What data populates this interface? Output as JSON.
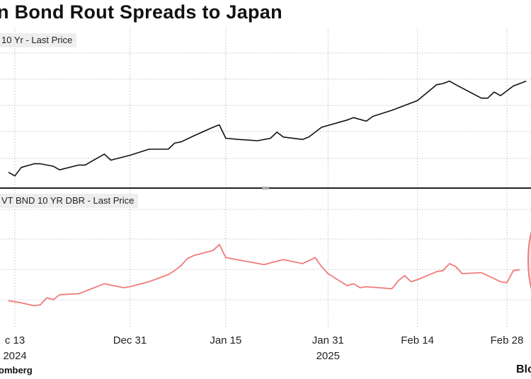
{
  "title": "n Bond Rout Spreads to Japan",
  "source": "omberg",
  "logo": "Blo",
  "chart_data": {
    "type": "line",
    "x_tick_labels": [
      {
        "date": "2024-12-13",
        "label": "c 13",
        "year": "2024"
      },
      {
        "date": "2024-12-31",
        "label": "Dec 31"
      },
      {
        "date": "2025-01-15",
        "label": "Jan 15"
      },
      {
        "date": "2025-01-31",
        "label": "Jan 31",
        "year": "2025"
      },
      {
        "date": "2025-02-14",
        "label": "Feb 14"
      },
      {
        "date": "2025-02-28",
        "label": "Feb 28"
      }
    ],
    "grid": true,
    "panels": [
      {
        "label": "10 Yr - Last Price",
        "color": "#111111",
        "ylim": [
          0,
          10
        ],
        "series": [
          {
            "x": "2024-12-12",
            "y": 0.6
          },
          {
            "x": "2024-12-13",
            "y": 0.3
          },
          {
            "x": "2024-12-14",
            "y": 1.0
          },
          {
            "x": "2024-12-16",
            "y": 1.3
          },
          {
            "x": "2024-12-17",
            "y": 1.3
          },
          {
            "x": "2024-12-18",
            "y": 1.2
          },
          {
            "x": "2024-12-19",
            "y": 1.1
          },
          {
            "x": "2024-12-20",
            "y": 0.8
          },
          {
            "x": "2024-12-23",
            "y": 1.2
          },
          {
            "x": "2024-12-24",
            "y": 1.2
          },
          {
            "x": "2024-12-25",
            "y": 1.5
          },
          {
            "x": "2024-12-27",
            "y": 2.1
          },
          {
            "x": "2024-12-28",
            "y": 1.6
          },
          {
            "x": "2024-12-31",
            "y": 2.0
          },
          {
            "x": "2025-01-03",
            "y": 2.5
          },
          {
            "x": "2025-01-06",
            "y": 2.5
          },
          {
            "x": "2025-01-07",
            "y": 3.0
          },
          {
            "x": "2025-01-08",
            "y": 3.1
          },
          {
            "x": "2025-01-10",
            "y": 3.6
          },
          {
            "x": "2025-01-13",
            "y": 4.3
          },
          {
            "x": "2025-01-14",
            "y": 4.5
          },
          {
            "x": "2025-01-15",
            "y": 3.4
          },
          {
            "x": "2025-01-17",
            "y": 3.3
          },
          {
            "x": "2025-01-20",
            "y": 3.2
          },
          {
            "x": "2025-01-22",
            "y": 3.4
          },
          {
            "x": "2025-01-23",
            "y": 3.9
          },
          {
            "x": "2025-01-24",
            "y": 3.5
          },
          {
            "x": "2025-01-27",
            "y": 3.3
          },
          {
            "x": "2025-01-28",
            "y": 3.5
          },
          {
            "x": "2025-01-30",
            "y": 4.3
          },
          {
            "x": "2025-02-03",
            "y": 4.9
          },
          {
            "x": "2025-02-04",
            "y": 5.1
          },
          {
            "x": "2025-02-06",
            "y": 4.8
          },
          {
            "x": "2025-02-07",
            "y": 5.2
          },
          {
            "x": "2025-02-10",
            "y": 5.7
          },
          {
            "x": "2025-02-12",
            "y": 6.1
          },
          {
            "x": "2025-02-14",
            "y": 6.5
          },
          {
            "x": "2025-02-17",
            "y": 7.8
          },
          {
            "x": "2025-02-18",
            "y": 7.9
          },
          {
            "x": "2025-02-19",
            "y": 8.1
          },
          {
            "x": "2025-02-20",
            "y": 7.8
          },
          {
            "x": "2025-02-24",
            "y": 6.7
          },
          {
            "x": "2025-02-25",
            "y": 6.7
          },
          {
            "x": "2025-02-26",
            "y": 7.2
          },
          {
            "x": "2025-02-27",
            "y": 6.9
          },
          {
            "x": "2025-03-01",
            "y": 7.7
          },
          {
            "x": "2025-03-03",
            "y": 8.1
          }
        ]
      },
      {
        "label": "VT BND 10 YR DBR - Last Price",
        "color": "#f07c7c",
        "ylim": [
          0,
          10
        ],
        "series": [
          {
            "x": "2024-12-12",
            "y": 2.3
          },
          {
            "x": "2024-12-14",
            "y": 2.1
          },
          {
            "x": "2024-12-16",
            "y": 1.8
          },
          {
            "x": "2024-12-17",
            "y": 1.9
          },
          {
            "x": "2024-12-18",
            "y": 2.6
          },
          {
            "x": "2024-12-19",
            "y": 2.4
          },
          {
            "x": "2024-12-20",
            "y": 2.9
          },
          {
            "x": "2024-12-23",
            "y": 3.0
          },
          {
            "x": "2024-12-27",
            "y": 4.0
          },
          {
            "x": "2024-12-30",
            "y": 3.6
          },
          {
            "x": "2024-12-31",
            "y": 3.7
          },
          {
            "x": "2025-01-03",
            "y": 4.2
          },
          {
            "x": "2025-01-06",
            "y": 4.9
          },
          {
            "x": "2025-01-07",
            "y": 5.3
          },
          {
            "x": "2025-01-08",
            "y": 5.8
          },
          {
            "x": "2025-01-09",
            "y": 6.5
          },
          {
            "x": "2025-01-10",
            "y": 6.8
          },
          {
            "x": "2025-01-13",
            "y": 7.3
          },
          {
            "x": "2025-01-14",
            "y": 7.9
          },
          {
            "x": "2025-01-15",
            "y": 6.6
          },
          {
            "x": "2025-01-21",
            "y": 5.9
          },
          {
            "x": "2025-01-24",
            "y": 6.4
          },
          {
            "x": "2025-01-27",
            "y": 6.0
          },
          {
            "x": "2025-01-29",
            "y": 6.6
          },
          {
            "x": "2025-01-30",
            "y": 5.7
          },
          {
            "x": "2025-01-31",
            "y": 5.0
          },
          {
            "x": "2025-02-03",
            "y": 3.8
          },
          {
            "x": "2025-02-04",
            "y": 4.0
          },
          {
            "x": "2025-02-05",
            "y": 3.6
          },
          {
            "x": "2025-02-06",
            "y": 3.7
          },
          {
            "x": "2025-02-10",
            "y": 3.5
          },
          {
            "x": "2025-02-11",
            "y": 4.3
          },
          {
            "x": "2025-02-12",
            "y": 4.8
          },
          {
            "x": "2025-02-13",
            "y": 4.2
          },
          {
            "x": "2025-02-14",
            "y": 4.4
          },
          {
            "x": "2025-02-17",
            "y": 5.2
          },
          {
            "x": "2025-02-18",
            "y": 5.3
          },
          {
            "x": "2025-02-19",
            "y": 6.0
          },
          {
            "x": "2025-02-20",
            "y": 5.7
          },
          {
            "x": "2025-02-21",
            "y": 5.0
          },
          {
            "x": "2025-02-24",
            "y": 5.1
          },
          {
            "x": "2025-02-26",
            "y": 4.5
          },
          {
            "x": "2025-02-27",
            "y": 4.2
          },
          {
            "x": "2025-02-28",
            "y": 4.1
          },
          {
            "x": "2025-03-01",
            "y": 5.3
          },
          {
            "x": "2025-03-02",
            "y": 5.4
          }
        ]
      }
    ]
  }
}
